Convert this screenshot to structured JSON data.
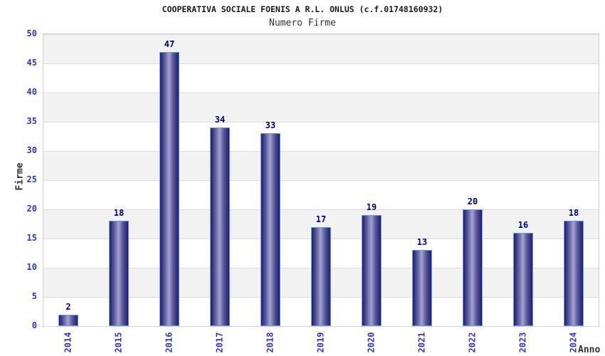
{
  "chart_data": {
    "type": "bar",
    "title": "COOPERATIVA SOCIALE FOENIS A R.L. ONLUS (c.f.01748160932)",
    "subtitle": "Numero Firme",
    "xlabel": "Anno",
    "ylabel": "Firme",
    "categories": [
      "2014",
      "2015",
      "2016",
      "2017",
      "2018",
      "2019",
      "2020",
      "2021",
      "2022",
      "2023",
      "2024"
    ],
    "values": [
      2,
      18,
      47,
      34,
      33,
      17,
      19,
      13,
      20,
      16,
      18
    ],
    "ylim": [
      0,
      50
    ],
    "y_ticks": [
      0,
      5,
      10,
      15,
      20,
      25,
      30,
      35,
      40,
      45,
      50
    ],
    "grid": "horizontal-bands-alternating",
    "legend": "none",
    "colors": {
      "bar_edge": "#1e1e6e",
      "bar_mid": "#555598",
      "bar_center": "#a2a2d2",
      "bar_border": "#6a9df0",
      "tick_label": "#3333cc",
      "value_label": "#000080",
      "band_gray": "#f2f2f2",
      "band_white": "#ffffff",
      "grid_line": "#dcdcdc",
      "plot_border": "#d0d0d0",
      "title_color": "#1a1a1a",
      "axis_label_color": "#333333"
    }
  }
}
